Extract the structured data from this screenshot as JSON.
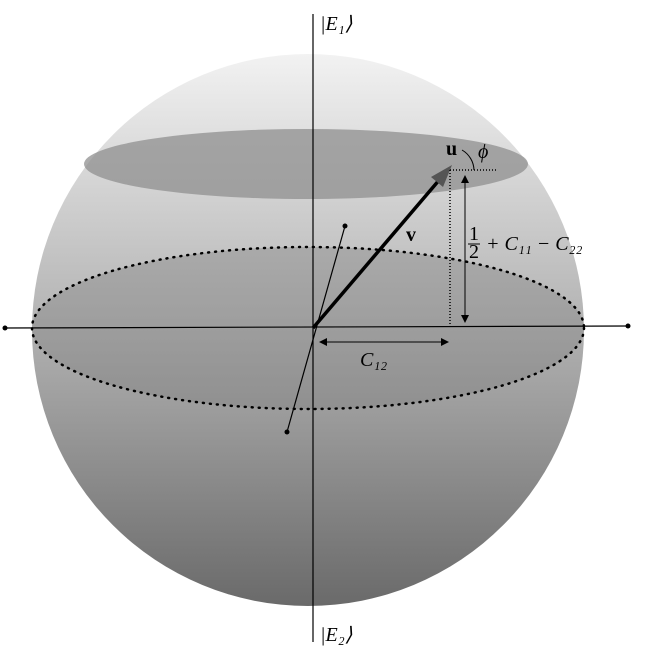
{
  "labels": {
    "top_state": "|E₁⟩",
    "bottom_state": "|E₂⟩",
    "u": "u",
    "v": "v",
    "phi": "ϕ",
    "height": {
      "numerator": "1",
      "denominator": "2",
      "rest": "+ C₁₁ − C₂₂"
    },
    "c12": "C₁₂"
  }
}
